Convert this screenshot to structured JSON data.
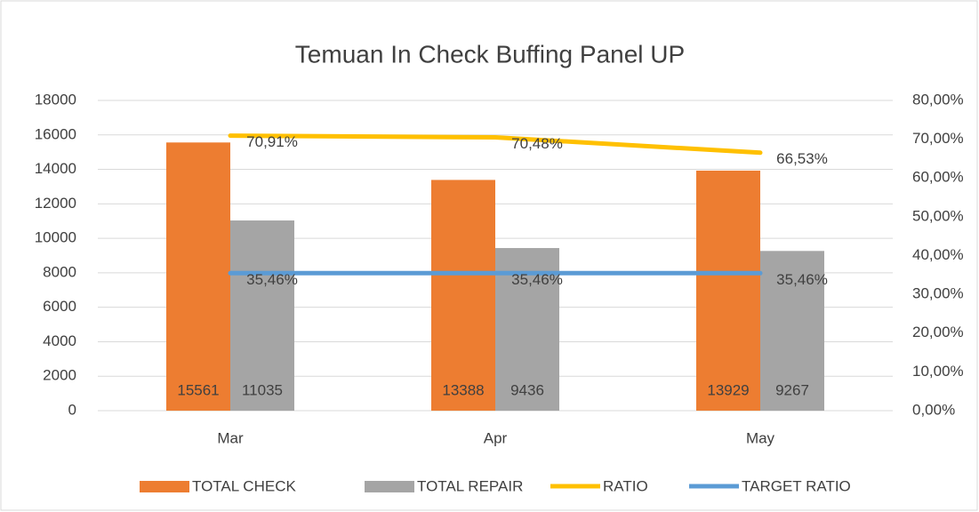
{
  "chart_data": {
    "type": "bar",
    "title": "Temuan In Check Buffing Panel UP",
    "categories": [
      "Mar",
      "Apr",
      "May"
    ],
    "series": [
      {
        "name": "TOTAL CHECK",
        "type": "bar",
        "color": "#ed7d31",
        "values": [
          15561,
          13388,
          13929
        ]
      },
      {
        "name": "TOTAL REPAIR",
        "type": "bar",
        "color": "#a5a5a5",
        "values": [
          11035,
          9436,
          9267
        ]
      },
      {
        "name": "RATIO",
        "type": "line",
        "axis": "y2",
        "color": "#ffc000",
        "values": [
          70.91,
          70.48,
          66.53
        ],
        "value_labels": [
          "70,91%",
          "70,48%",
          "66,53%"
        ]
      },
      {
        "name": "TARGET RATIO",
        "type": "line",
        "axis": "y2",
        "color": "#5b9bd5",
        "values": [
          35.46,
          35.46,
          35.46
        ],
        "value_labels": [
          "35,46%",
          "35,46%",
          "35,46%"
        ]
      }
    ],
    "ylim": [
      0,
      18000
    ],
    "yticks": [
      0,
      2000,
      4000,
      6000,
      8000,
      10000,
      12000,
      14000,
      16000,
      18000
    ],
    "y2lim": [
      0,
      80
    ],
    "y2ticks": [
      {
        "value": 0,
        "label": "0,00%"
      },
      {
        "value": 10,
        "label": "10,00%"
      },
      {
        "value": 20,
        "label": "20,00%"
      },
      {
        "value": 30,
        "label": "30,00%"
      },
      {
        "value": 40,
        "label": "40,00%"
      },
      {
        "value": 50,
        "label": "50,00%"
      },
      {
        "value": 60,
        "label": "60,00%"
      },
      {
        "value": 70,
        "label": "70,00%"
      },
      {
        "value": 80,
        "label": "80,00%"
      }
    ],
    "grid": true,
    "legend": "bottom"
  }
}
